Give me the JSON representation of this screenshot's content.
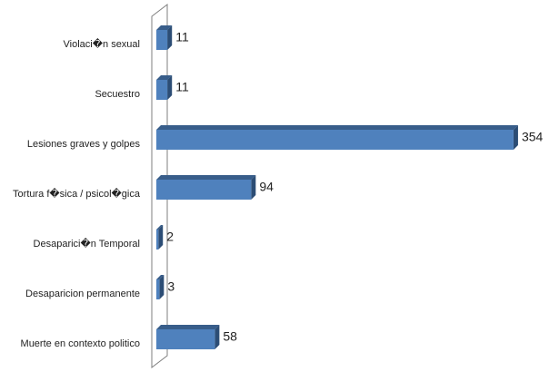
{
  "chart_data": {
    "type": "bar3d_horizontal",
    "categories": [
      "Violaci�n sexual",
      "Secuestro",
      "Lesiones graves y golpes",
      "Tortura f�sica / psicol�gica",
      "Desaparici�n Temporal",
      "Desaparicion permanente",
      "Muerte en contexto politico"
    ],
    "values": [
      11,
      11,
      354,
      94,
      2,
      3,
      58
    ],
    "color": "#4f81bd"
  }
}
